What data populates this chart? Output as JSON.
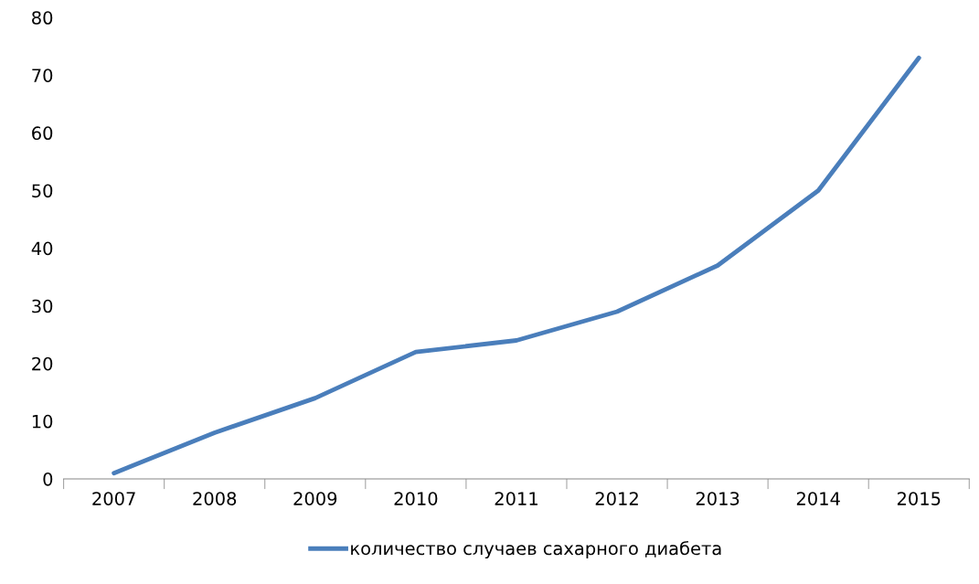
{
  "chart_data": {
    "type": "line",
    "categories": [
      "2007",
      "2008",
      "2009",
      "2010",
      "2011",
      "2012",
      "2013",
      "2014",
      "2015"
    ],
    "series": [
      {
        "name": "количество случаев сахарного диабета",
        "color": "#4a7ebb",
        "values": [
          1,
          8,
          14,
          22,
          24,
          29,
          37,
          50,
          73
        ]
      }
    ],
    "ylim": [
      0,
      80
    ],
    "yticks": [
      0,
      10,
      20,
      30,
      40,
      50,
      60,
      70,
      80
    ],
    "grid": false,
    "legend": "bottom",
    "marker": "none",
    "line_style": "solid"
  }
}
